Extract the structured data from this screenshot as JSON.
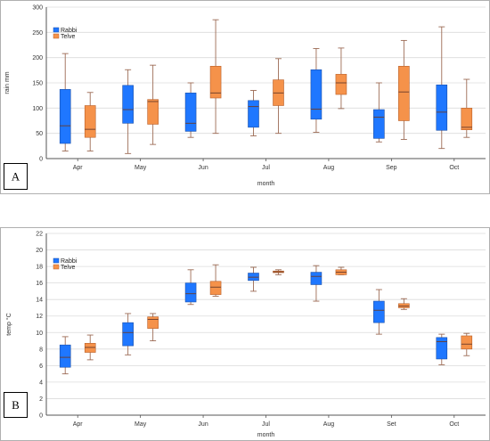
{
  "colors": {
    "rabbi": "#1f77ff",
    "rabbi_edge": "#1a4fa8",
    "telve": "#f5924a",
    "telve_edge": "#b9602a",
    "whisker": "#9c6b55",
    "grid": "#dcdcdc",
    "axis": "#555555"
  },
  "chart_data": [
    {
      "panel": "A",
      "type": "box",
      "xlabel": "month",
      "ylabel": "rain mm",
      "ylim": [
        0,
        300
      ],
      "yticks": [
        0,
        50,
        100,
        150,
        200,
        250,
        300
      ],
      "grid": true,
      "legend": "top-left",
      "categories": [
        "Apr",
        "May",
        "Jun",
        "Jul",
        "Aug",
        "Sep",
        "Oct"
      ],
      "series": [
        {
          "name": "Rabbi",
          "color": "#1f77ff",
          "boxes": [
            {
              "min": 15,
              "q1": 30,
              "median": 65,
              "q3": 137,
              "max": 208
            },
            {
              "min": 10,
              "q1": 70,
              "median": 97,
              "q3": 145,
              "max": 176
            },
            {
              "min": 42,
              "q1": 54,
              "median": 70,
              "q3": 130,
              "max": 150
            },
            {
              "min": 45,
              "q1": 62,
              "median": 103,
              "q3": 115,
              "max": 135
            },
            {
              "min": 52,
              "q1": 78,
              "median": 98,
              "q3": 176,
              "max": 218
            },
            {
              "min": 33,
              "q1": 40,
              "median": 82,
              "q3": 97,
              "max": 150
            },
            {
              "min": 20,
              "q1": 56,
              "median": 92,
              "q3": 146,
              "max": 261
            }
          ]
        },
        {
          "name": "Telve",
          "color": "#f5924a",
          "boxes": [
            {
              "min": 15,
              "q1": 42,
              "median": 58,
              "q3": 105,
              "max": 131
            },
            {
              "min": 28,
              "q1": 68,
              "median": 113,
              "q3": 117,
              "max": 185
            },
            {
              "min": 50,
              "q1": 120,
              "median": 130,
              "q3": 183,
              "max": 275
            },
            {
              "min": 50,
              "q1": 105,
              "median": 130,
              "q3": 156,
              "max": 198
            },
            {
              "min": 99,
              "q1": 127,
              "median": 150,
              "q3": 167,
              "max": 219
            },
            {
              "min": 38,
              "q1": 75,
              "median": 132,
              "q3": 183,
              "max": 234
            },
            {
              "min": 42,
              "q1": 57,
              "median": 62,
              "q3": 100,
              "max": 157
            }
          ]
        }
      ]
    },
    {
      "panel": "B",
      "type": "box",
      "xlabel": "month",
      "ylabel": "temp °C",
      "ylim": [
        0,
        22
      ],
      "yticks": [
        0,
        2,
        4,
        6,
        8,
        10,
        12,
        14,
        16,
        18,
        20,
        22
      ],
      "grid": true,
      "legend": "top-left",
      "categories": [
        "Apr",
        "May",
        "Jun",
        "Jul",
        "Aug",
        "Set",
        "Oct"
      ],
      "series": [
        {
          "name": "Rabbi",
          "color": "#1f77ff",
          "boxes": [
            {
              "min": 5.0,
              "q1": 5.8,
              "median": 7.0,
              "q3": 8.5,
              "max": 9.5
            },
            {
              "min": 7.3,
              "q1": 8.4,
              "median": 10.0,
              "q3": 11.2,
              "max": 12.3
            },
            {
              "min": 13.4,
              "q1": 13.7,
              "median": 14.7,
              "q3": 16.0,
              "max": 17.6
            },
            {
              "min": 15.0,
              "q1": 16.3,
              "median": 16.7,
              "q3": 17.2,
              "max": 17.9
            },
            {
              "min": 13.8,
              "q1": 15.8,
              "median": 16.8,
              "q3": 17.3,
              "max": 18.1
            },
            {
              "min": 9.8,
              "q1": 11.2,
              "median": 12.7,
              "q3": 13.8,
              "max": 15.2
            },
            {
              "min": 6.1,
              "q1": 6.8,
              "median": 8.9,
              "q3": 9.4,
              "max": 9.8
            }
          ]
        },
        {
          "name": "Telve",
          "color": "#f5924a",
          "boxes": [
            {
              "min": 6.7,
              "q1": 7.6,
              "median": 8.2,
              "q3": 8.7,
              "max": 9.7
            },
            {
              "min": 9.0,
              "q1": 10.5,
              "median": 11.6,
              "q3": 11.9,
              "max": 12.3
            },
            {
              "min": 14.4,
              "q1": 14.6,
              "median": 15.5,
              "q3": 16.2,
              "max": 18.2
            },
            {
              "min": 17.0,
              "q1": 17.25,
              "median": 17.35,
              "q3": 17.45,
              "max": 17.6
            },
            {
              "min": 17.0,
              "q1": 17.0,
              "median": 17.3,
              "q3": 17.6,
              "max": 17.9
            },
            {
              "min": 12.8,
              "q1": 13.0,
              "median": 13.2,
              "q3": 13.5,
              "max": 14.1
            },
            {
              "min": 7.2,
              "q1": 8.0,
              "median": 8.6,
              "q3": 9.6,
              "max": 9.9
            }
          ]
        }
      ]
    }
  ]
}
